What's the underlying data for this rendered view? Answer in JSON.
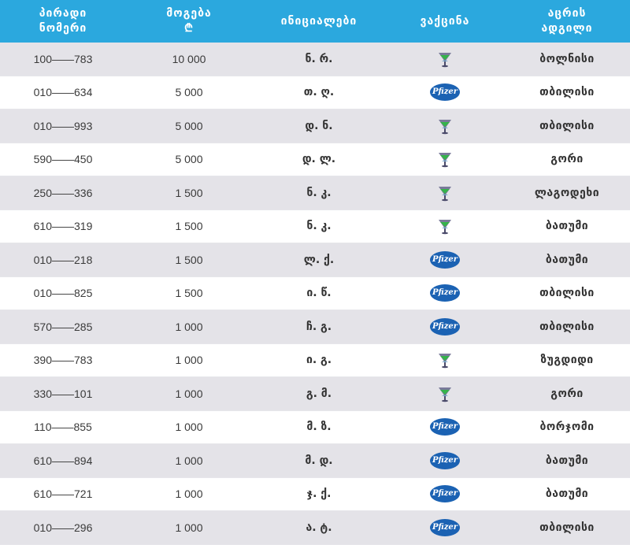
{
  "header": {
    "col1_line1": "პირადი",
    "col1_line2": "ნომერი",
    "col2_line1": "მოგება",
    "col2_line2": "₾",
    "col3": "ინიციალები",
    "col4": "ვაქცინა",
    "col5_line1": "აცრის",
    "col5_line2": "ადგილი"
  },
  "vaccine_icons": {
    "pfizer": "Pfizer",
    "other": "vaccine-logo-icon"
  },
  "colors": {
    "header_bg": "#2ba8de",
    "row_shade": "#e4e3e8",
    "pfizer_blue": "#1b62b3"
  },
  "rows": [
    {
      "id": "100——783",
      "prize": "10 000",
      "initials": "ნ. რ.",
      "vaccine": "other",
      "city": "ბოლნისი"
    },
    {
      "id": "010——634",
      "prize": "5 000",
      "initials": "თ. ღ.",
      "vaccine": "pfizer",
      "city": "თბილისი"
    },
    {
      "id": "010——993",
      "prize": "5 000",
      "initials": "დ. ნ.",
      "vaccine": "other",
      "city": "თბილისი"
    },
    {
      "id": "590——450",
      "prize": "5 000",
      "initials": "დ. ლ.",
      "vaccine": "other",
      "city": "გორი"
    },
    {
      "id": "250——336",
      "prize": "1 500",
      "initials": "ნ. კ.",
      "vaccine": "other",
      "city": "ლაგოდეხი"
    },
    {
      "id": "610——319",
      "prize": "1 500",
      "initials": "ნ. კ.",
      "vaccine": "other",
      "city": "ბათუმი"
    },
    {
      "id": "010——218",
      "prize": "1 500",
      "initials": "ლ. ქ.",
      "vaccine": "pfizer",
      "city": "ბათუმი"
    },
    {
      "id": "010——825",
      "prize": "1 500",
      "initials": "ი. წ.",
      "vaccine": "pfizer",
      "city": "თბილისი"
    },
    {
      "id": "570——285",
      "prize": "1 000",
      "initials": "ჩ. გ.",
      "vaccine": "pfizer",
      "city": "თბილისი"
    },
    {
      "id": "390——783",
      "prize": "1 000",
      "initials": "ი. გ.",
      "vaccine": "other",
      "city": "ზუგდიდი"
    },
    {
      "id": "330——101",
      "prize": "1 000",
      "initials": "გ. მ.",
      "vaccine": "other",
      "city": "გორი"
    },
    {
      "id": "110——855",
      "prize": "1 000",
      "initials": "მ. ზ.",
      "vaccine": "pfizer",
      "city": "ბორჯომი"
    },
    {
      "id": "610——894",
      "prize": "1 000",
      "initials": "მ. დ.",
      "vaccine": "pfizer",
      "city": "ბათუმი"
    },
    {
      "id": "610——721",
      "prize": "1 000",
      "initials": "ჯ. ქ.",
      "vaccine": "pfizer",
      "city": "ბათუმი"
    },
    {
      "id": "010——296",
      "prize": "1 000",
      "initials": "ა. ტ.",
      "vaccine": "pfizer",
      "city": "თბილისი"
    }
  ]
}
